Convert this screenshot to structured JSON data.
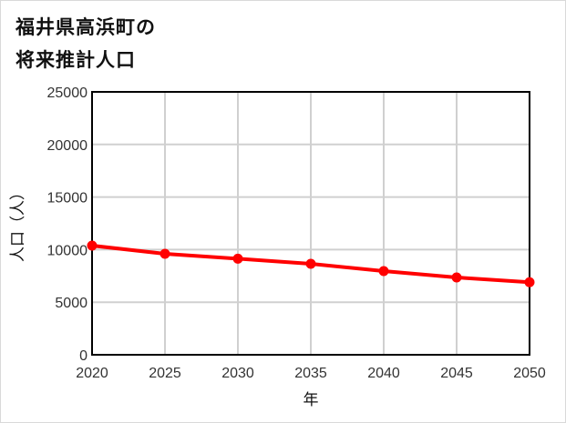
{
  "title": {
    "line1": "福井県高浜町の",
    "line2": "将来推計人口"
  },
  "chart_data": {
    "type": "line",
    "title": "福井県高浜町の将来推計人口",
    "xlabel": "年",
    "ylabel": "人口（人）",
    "categories": [
      "2020",
      "2025",
      "2030",
      "2035",
      "2040",
      "2045",
      "2050"
    ],
    "series": [
      {
        "name": "人口",
        "color": "#ff0000",
        "values": [
          10380,
          9600,
          9140,
          8650,
          7960,
          7350,
          6900
        ]
      }
    ],
    "ylim": [
      0,
      25000
    ],
    "yticks": [
      0,
      5000,
      10000,
      15000,
      20000,
      25000
    ],
    "grid": true,
    "legend": "none"
  },
  "colors": {
    "line": "#ff0000",
    "grid": "#d0d0d0",
    "axis": "#000000"
  }
}
